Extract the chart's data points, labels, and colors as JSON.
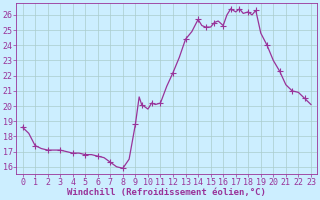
{
  "title": "",
  "xlabel": "Windchill (Refroidissement éolien,°C)",
  "ylabel": "",
  "background_color": "#cceeff",
  "line_color": "#993399",
  "marker_color": "#993399",
  "grid_color": "#aacccc",
  "axis_label_color": "#993399",
  "tick_label_color": "#993399",
  "xlim": [
    -0.5,
    23.5
  ],
  "ylim": [
    15.5,
    26.8
  ],
  "yticks": [
    16,
    17,
    18,
    19,
    20,
    21,
    22,
    23,
    24,
    25,
    26
  ],
  "xticks": [
    0,
    1,
    2,
    3,
    4,
    5,
    6,
    7,
    8,
    9,
    10,
    11,
    12,
    13,
    14,
    15,
    16,
    17,
    18,
    19,
    20,
    21,
    22,
    23
  ],
  "data_x": [
    0,
    0.5,
    1,
    1.5,
    2,
    2.5,
    3,
    3.5,
    4,
    4.5,
    5,
    5.5,
    6,
    6.5,
    7,
    7.5,
    8,
    8.5,
    9,
    9.3,
    9.5,
    10,
    10.3,
    10.6,
    11,
    11.5,
    12,
    12.5,
    13,
    13.5,
    14,
    14.3,
    14.6,
    15,
    15.3,
    15.6,
    16,
    16.3,
    16.6,
    17,
    17.3,
    17.6,
    18,
    18.3,
    18.6,
    19,
    19.5,
    20,
    20.5,
    21,
    21.5,
    22,
    22.5,
    23
  ],
  "data_y": [
    18.6,
    18.2,
    17.4,
    17.2,
    17.1,
    17.1,
    17.1,
    17.0,
    16.9,
    16.9,
    16.8,
    16.8,
    16.7,
    16.6,
    16.3,
    16.0,
    15.9,
    16.5,
    18.8,
    20.6,
    20.1,
    19.8,
    20.2,
    20.1,
    20.2,
    21.3,
    22.2,
    23.2,
    24.4,
    24.9,
    25.7,
    25.3,
    25.2,
    25.2,
    25.5,
    25.6,
    25.3,
    26.0,
    26.4,
    26.2,
    26.4,
    26.1,
    26.2,
    26.0,
    26.3,
    24.8,
    24.0,
    23.0,
    22.3,
    21.4,
    21.0,
    20.9,
    20.5,
    20.1
  ],
  "marker_indices": [
    0,
    2,
    4,
    6,
    8,
    10,
    12,
    14,
    16,
    18,
    20,
    22,
    24,
    26,
    28,
    30,
    32,
    34,
    36,
    38,
    40,
    42,
    44,
    46,
    48,
    50,
    52
  ],
  "marker_size": 2.5,
  "line_width": 0.9,
  "font_size": 6.5,
  "tick_font_size": 6
}
